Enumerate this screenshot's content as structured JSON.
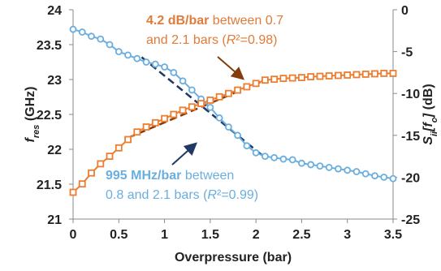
{
  "chart_data": {
    "type": "dual-axis-line",
    "x_label": "Overpressure (bar)",
    "y_label": [
      {
        "text": "f",
        "italic": true
      },
      {
        "text": "res",
        "italic": true,
        "sub": true
      },
      {
        "text": " (GHz)"
      }
    ],
    "y2_label": [
      {
        "text": "S",
        "italic": true
      },
      {
        "text": "ii",
        "italic": true,
        "sub": true
      },
      {
        "text": "[",
        "italic": true
      },
      {
        "text": "f",
        "italic": true
      },
      {
        "text": "c",
        "italic": true,
        "sub": true
      },
      {
        "text": "]",
        "italic": true
      },
      {
        "text": " (dB)"
      }
    ],
    "x": [
      0,
      0.1,
      0.2,
      0.3,
      0.4,
      0.5,
      0.6,
      0.7,
      0.8,
      0.9,
      1.0,
      1.1,
      1.2,
      1.3,
      1.4,
      1.5,
      1.6,
      1.7,
      1.8,
      1.9,
      2.0,
      2.1,
      2.2,
      2.3,
      2.4,
      2.5,
      2.6,
      2.7,
      2.8,
      2.9,
      3.0,
      3.1,
      3.2,
      3.3,
      3.4,
      3.5
    ],
    "series": [
      {
        "color": "#6aaee0",
        "marker": "circle",
        "axis": "y",
        "values": [
          23.72,
          23.68,
          23.62,
          23.58,
          23.5,
          23.4,
          23.35,
          23.3,
          23.25,
          23.22,
          23.18,
          23.1,
          22.98,
          22.85,
          22.72,
          22.6,
          22.45,
          22.32,
          22.2,
          22.05,
          21.95,
          21.9,
          21.88,
          21.86,
          21.85,
          21.8,
          21.78,
          21.76,
          21.74,
          21.72,
          21.7,
          21.68,
          21.65,
          21.62,
          21.6,
          21.58
        ]
      },
      {
        "color": "#ed7d31",
        "marker": "square",
        "axis": "y2",
        "values": [
          -21.8,
          -20.8,
          -19.5,
          -18.4,
          -17.5,
          -16.5,
          -15.5,
          -14.6,
          -14.0,
          -13.5,
          -13.0,
          -12.5,
          -12.0,
          -11.6,
          -11.2,
          -10.8,
          -10.4,
          -10.0,
          -9.6,
          -9.2,
          -8.8,
          -8.4,
          -8.3,
          -8.2,
          -8.15,
          -8.1,
          -8.0,
          -7.95,
          -7.9,
          -7.85,
          -7.8,
          -7.75,
          -7.7,
          -7.65,
          -7.6,
          -7.6
        ]
      }
    ],
    "trendlines": [
      {
        "axis": "y",
        "color": "#1f3864",
        "x": [
          0.75,
          2.1
        ],
        "values": [
          23.32,
          21.88
        ]
      },
      {
        "axis": "y2",
        "color": "#843c0c",
        "x": [
          0.6,
          2.1
        ],
        "values": [
          -15.3,
          -8.4
        ]
      }
    ],
    "annotations": [
      {
        "color": "#e07b39",
        "lines": [
          [
            {
              "text": "4.2 dB/bar",
              "bold": true
            },
            {
              "text": " between 0.7"
            }
          ],
          [
            {
              "text": "and 2.1 bars ("
            },
            {
              "text": "R",
              "italic": true
            },
            {
              "text": "²=0.98)"
            }
          ]
        ]
      },
      {
        "color": "#6aaee0",
        "lines": [
          [
            {
              "text": "995 MHz/bar",
              "bold": true
            },
            {
              "text": " between"
            }
          ],
          [
            {
              "text": "0.8 and 2.1 bars ("
            },
            {
              "text": "R",
              "italic": true
            },
            {
              "text": "²=0.99)"
            }
          ]
        ]
      }
    ],
    "xlim": [
      0,
      3.5
    ],
    "xticks": [
      0,
      0.5,
      1,
      1.5,
      2,
      2.5,
      3,
      3.5
    ],
    "ylim": [
      21,
      24
    ],
    "yticks": [
      21,
      21.5,
      22,
      22.5,
      23,
      23.5,
      24
    ],
    "y2lim": [
      -25,
      0
    ],
    "y2ticks": [
      -25,
      -20,
      -15,
      -10,
      -5,
      0
    ]
  }
}
